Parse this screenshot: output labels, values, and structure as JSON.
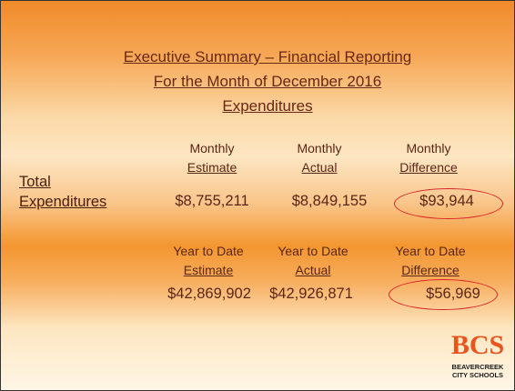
{
  "title": {
    "lines": [
      "Executive Summary – Financial Reporting",
      "For the Month of December 2016",
      "Expenditures"
    ]
  },
  "row_label": {
    "lines": [
      "Total",
      "Expenditures"
    ]
  },
  "monthly": {
    "columns": [
      {
        "header": [
          "Monthly",
          "Estimate"
        ],
        "value": "$8,755,211"
      },
      {
        "header": [
          "Monthly",
          "Actual"
        ],
        "value": "$8,849,155"
      },
      {
        "header": [
          "Monthly",
          "Difference"
        ],
        "value": "$93,944"
      }
    ]
  },
  "year_to_date": {
    "columns": [
      {
        "header": [
          "Year to Date",
          "Estimate"
        ],
        "value": "$42,869,902"
      },
      {
        "header": [
          "Year to Date",
          "Actual"
        ],
        "value": "$42,926,871"
      },
      {
        "header": [
          "Year to Date",
          "Difference"
        ],
        "value": "$56,969"
      }
    ]
  },
  "logo": {
    "mark": "BCS",
    "lines": [
      "BEAVERCREEK",
      "CITY SCHOOLS"
    ]
  }
}
